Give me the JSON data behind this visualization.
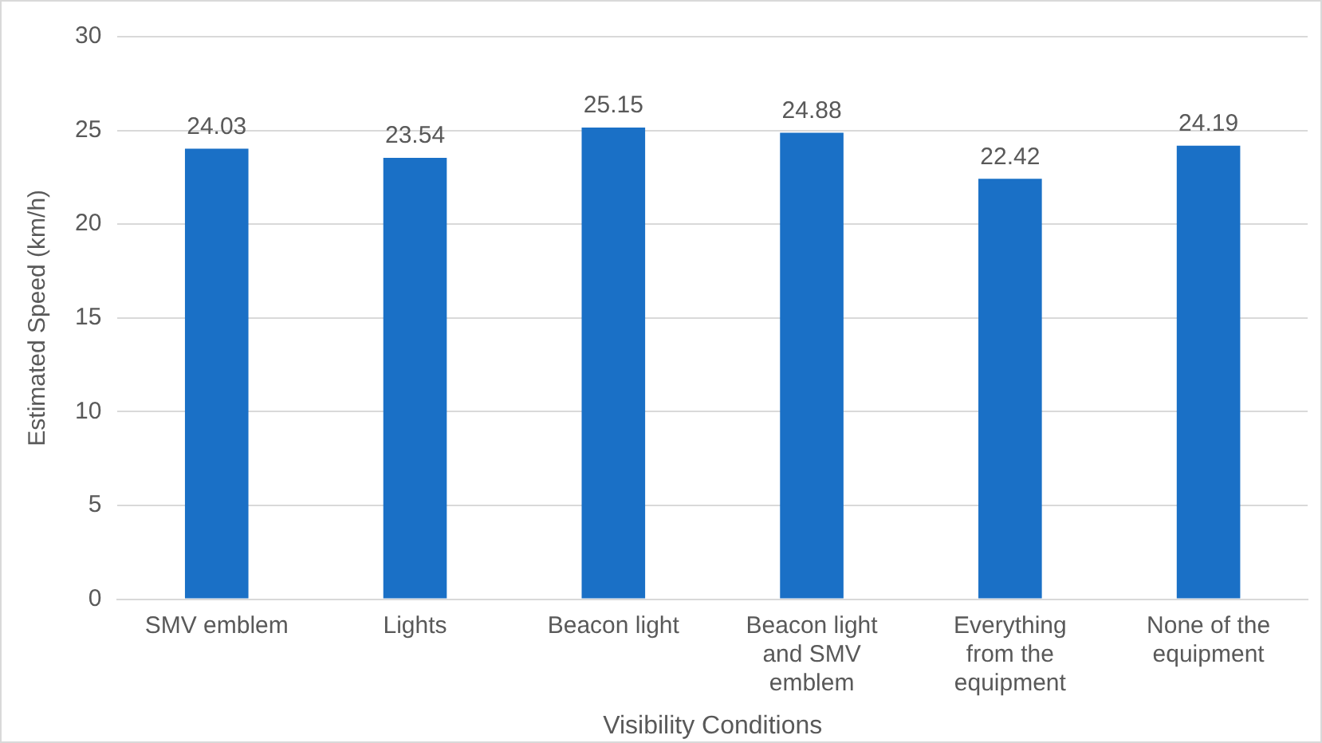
{
  "chart_data": {
    "type": "bar",
    "xlabel": "Visibility Conditions",
    "ylabel": "Estimated Speed (km/h)",
    "categories": [
      "SMV emblem",
      "Lights",
      "Beacon light",
      "Beacon light and SMV emblem",
      "Everything from the equipment",
      "None of the equipment"
    ],
    "values": [
      24.03,
      23.54,
      25.15,
      24.88,
      22.42,
      24.19
    ],
    "color": "#1a70c6",
    "ylim": [
      0,
      30
    ],
    "yticks": [
      0,
      5,
      10,
      15,
      20,
      25,
      30
    ],
    "grid": "y",
    "legend": false,
    "data_labels": true
  }
}
